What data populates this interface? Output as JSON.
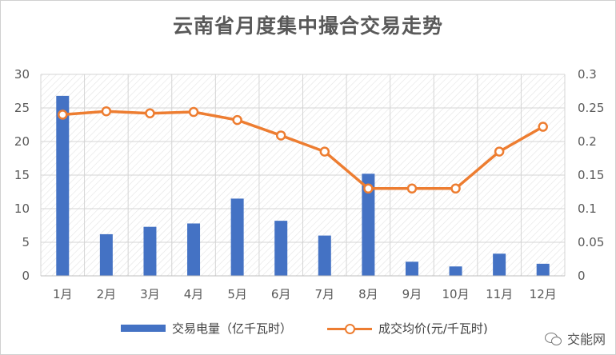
{
  "chart_data": {
    "type": "bar+line",
    "title": "云南省月度集中撮合交易走势",
    "categories": [
      "1月",
      "2月",
      "3月",
      "4月",
      "5月",
      "6月",
      "7月",
      "8月",
      "9月",
      "10月",
      "11月",
      "12月"
    ],
    "series": [
      {
        "name": "交易电量（亿千瓦时）",
        "type": "bar",
        "axis": "left",
        "color": "#4472C4",
        "values": [
          26.8,
          6.2,
          7.3,
          7.8,
          11.5,
          8.2,
          6.0,
          15.2,
          2.1,
          1.4,
          3.3,
          1.8
        ]
      },
      {
        "name": "成交均价(元/千瓦时)",
        "type": "line",
        "axis": "right",
        "color": "#ED7D31",
        "values": [
          0.24,
          0.245,
          0.242,
          0.244,
          0.232,
          0.209,
          0.185,
          0.13,
          0.13,
          0.13,
          0.185,
          0.222
        ]
      }
    ],
    "y_left": {
      "ylim": [
        0,
        30
      ],
      "ticks": [
        "0",
        "5",
        "10",
        "15",
        "20",
        "25",
        "30"
      ]
    },
    "y_right": {
      "ylim": [
        0,
        0.3
      ],
      "ticks": [
        "0",
        "0.05",
        "0.1",
        "0.15",
        "0.2",
        "0.25",
        "0.3"
      ]
    },
    "grid": true,
    "legend_position": "bottom"
  },
  "watermark": {
    "text": "交能网",
    "icon": "wechat-icon"
  }
}
